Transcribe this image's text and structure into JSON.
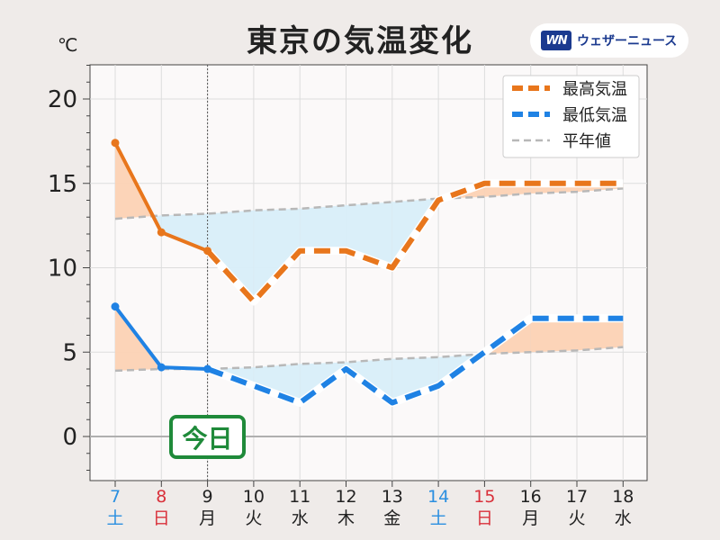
{
  "logo": {
    "mark": "WN",
    "text": "ウェザーニュース"
  },
  "chart_data": {
    "type": "line",
    "title": "東京の気温変化",
    "ylabel": "℃",
    "ylim": [
      -2.5,
      22
    ],
    "yticks": [
      0,
      5,
      10,
      15,
      20
    ],
    "grid": true,
    "legend_position": "top-right",
    "categories": [
      {
        "day": "7",
        "weekday": "土",
        "color": "#2b8fe0"
      },
      {
        "day": "8",
        "weekday": "日",
        "color": "#d9303a"
      },
      {
        "day": "9",
        "weekday": "月",
        "color": "#222222"
      },
      {
        "day": "10",
        "weekday": "火",
        "color": "#222222"
      },
      {
        "day": "11",
        "weekday": "水",
        "color": "#222222"
      },
      {
        "day": "12",
        "weekday": "木",
        "color": "#222222"
      },
      {
        "day": "13",
        "weekday": "金",
        "color": "#222222"
      },
      {
        "day": "14",
        "weekday": "土",
        "color": "#2b8fe0"
      },
      {
        "day": "15",
        "weekday": "日",
        "color": "#d9303a"
      },
      {
        "day": "16",
        "weekday": "月",
        "color": "#222222"
      },
      {
        "day": "17",
        "weekday": "火",
        "color": "#222222"
      },
      {
        "day": "18",
        "weekday": "水",
        "color": "#222222"
      }
    ],
    "today_index": 2,
    "today_label": "今日",
    "series": [
      {
        "name": "最高気温",
        "color": "#e8761c",
        "values": [
          17.4,
          12.1,
          11.0,
          8.0,
          11.0,
          11.0,
          10.0,
          14.0,
          15.0,
          15.0,
          15.0,
          15.0
        ]
      },
      {
        "name": "最低気温",
        "color": "#1f82e4",
        "values": [
          7.7,
          4.1,
          4.0,
          3.0,
          2.0,
          4.0,
          2.0,
          3.0,
          5.0,
          7.0,
          7.0,
          7.0
        ]
      },
      {
        "name": "平年値",
        "color": "#b8b8b8",
        "values_high": [
          12.9,
          13.1,
          13.2,
          13.4,
          13.5,
          13.7,
          13.9,
          14.1,
          14.2,
          14.4,
          14.5,
          14.7
        ],
        "values_low": [
          3.9,
          4.0,
          4.0,
          4.1,
          4.3,
          4.4,
          4.6,
          4.7,
          4.9,
          5.0,
          5.1,
          5.3
        ]
      }
    ],
    "colors": {
      "above_normal_fill": "#fcd2b4",
      "below_normal_fill": "#d8eef9",
      "today_badge": "#1f8a3a",
      "zero_line": "#b0b0b0",
      "grid": "#dddddd",
      "plot_bg": "#fbf9f9"
    }
  }
}
